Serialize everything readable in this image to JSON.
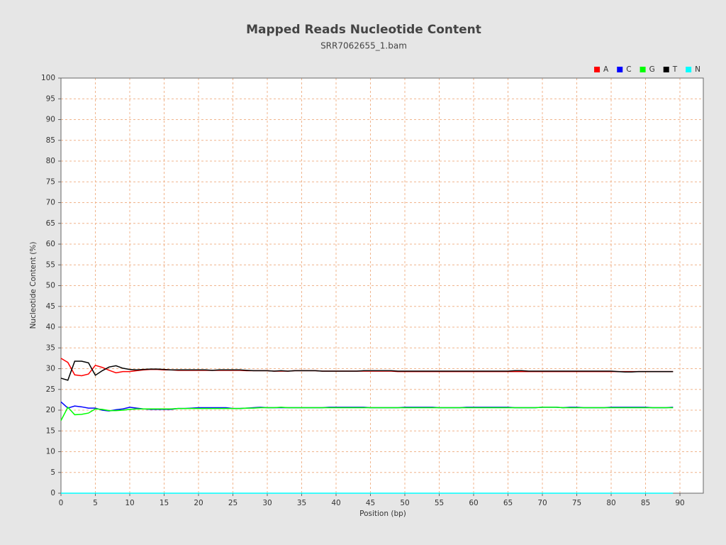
{
  "chart_data": {
    "type": "line",
    "title": "Mapped Reads Nucleotide Content",
    "subtitle": "SRR7062655_1.bam",
    "x_label": "Position (bp)",
    "y_label": "Nucleotide Content (%)",
    "x": [
      0,
      1,
      2,
      3,
      4,
      5,
      6,
      7,
      8,
      9,
      10,
      11,
      12,
      13,
      14,
      15,
      16,
      17,
      18,
      19,
      20,
      21,
      22,
      23,
      24,
      25,
      26,
      27,
      28,
      29,
      30,
      31,
      32,
      33,
      34,
      35,
      36,
      37,
      38,
      39,
      40,
      41,
      42,
      43,
      44,
      45,
      46,
      47,
      48,
      49,
      50,
      51,
      52,
      53,
      54,
      55,
      56,
      57,
      58,
      59,
      60,
      61,
      62,
      63,
      64,
      65,
      66,
      67,
      68,
      69,
      70,
      71,
      72,
      73,
      74,
      75,
      76,
      77,
      78,
      79,
      80,
      81,
      82,
      83,
      84,
      85,
      86,
      87,
      88,
      89
    ],
    "series": [
      {
        "name": "A",
        "color": "#ff0000",
        "values": [
          32.5,
          31.5,
          28.5,
          28.3,
          28.7,
          30.8,
          30.3,
          29.6,
          29.0,
          29.3,
          29.3,
          29.5,
          29.7,
          29.8,
          29.8,
          29.7,
          29.7,
          29.6,
          29.6,
          29.6,
          29.6,
          29.6,
          29.6,
          29.6,
          29.6,
          29.6,
          29.6,
          29.5,
          29.5,
          29.5,
          29.5,
          29.4,
          29.4,
          29.4,
          29.5,
          29.5,
          29.5,
          29.5,
          29.4,
          29.4,
          29.4,
          29.4,
          29.4,
          29.4,
          29.4,
          29.4,
          29.4,
          29.4,
          29.4,
          29.3,
          29.3,
          29.3,
          29.3,
          29.3,
          29.3,
          29.3,
          29.3,
          29.3,
          29.3,
          29.3,
          29.3,
          29.3,
          29.3,
          29.3,
          29.3,
          29.3,
          29.3,
          29.3,
          29.3,
          29.3,
          29.3,
          29.3,
          29.3,
          29.3,
          29.3,
          29.3,
          29.3,
          29.3,
          29.3,
          29.3,
          29.3,
          29.3,
          29.3,
          29.3,
          29.3,
          29.3,
          29.3,
          29.3,
          29.3,
          29.3
        ]
      },
      {
        "name": "C",
        "color": "#0000ff",
        "values": [
          22.0,
          20.5,
          21.0,
          20.8,
          20.5,
          20.5,
          20.0,
          19.8,
          20.1,
          20.3,
          20.7,
          20.5,
          20.3,
          20.2,
          20.2,
          20.2,
          20.2,
          20.4,
          20.4,
          20.5,
          20.6,
          20.6,
          20.6,
          20.6,
          20.6,
          20.4,
          20.4,
          20.5,
          20.6,
          20.7,
          20.6,
          20.6,
          20.6,
          20.6,
          20.6,
          20.6,
          20.6,
          20.6,
          20.6,
          20.7,
          20.7,
          20.7,
          20.7,
          20.7,
          20.7,
          20.6,
          20.6,
          20.6,
          20.6,
          20.6,
          20.7,
          20.7,
          20.7,
          20.7,
          20.7,
          20.6,
          20.6,
          20.6,
          20.6,
          20.7,
          20.7,
          20.7,
          20.7,
          20.7,
          20.7,
          20.7,
          20.6,
          20.6,
          20.6,
          20.6,
          20.7,
          20.7,
          20.7,
          20.6,
          20.7,
          20.7,
          20.6,
          20.6,
          20.6,
          20.6,
          20.7,
          20.7,
          20.7,
          20.7,
          20.7,
          20.7,
          20.6,
          20.6,
          20.6,
          20.7
        ]
      },
      {
        "name": "G",
        "color": "#00ff00",
        "values": [
          17.5,
          20.7,
          18.9,
          19.0,
          19.3,
          20.3,
          20.2,
          19.9,
          19.9,
          20.0,
          20.2,
          20.3,
          20.3,
          20.3,
          20.3,
          20.3,
          20.3,
          20.4,
          20.4,
          20.4,
          20.4,
          20.4,
          20.4,
          20.4,
          20.4,
          20.4,
          20.4,
          20.5,
          20.5,
          20.6,
          20.6,
          20.6,
          20.7,
          20.6,
          20.6,
          20.6,
          20.6,
          20.6,
          20.6,
          20.6,
          20.6,
          20.6,
          20.6,
          20.6,
          20.6,
          20.6,
          20.6,
          20.6,
          20.6,
          20.6,
          20.6,
          20.6,
          20.6,
          20.6,
          20.6,
          20.6,
          20.6,
          20.6,
          20.6,
          20.6,
          20.6,
          20.6,
          20.6,
          20.6,
          20.6,
          20.6,
          20.6,
          20.6,
          20.6,
          20.6,
          20.7,
          20.7,
          20.7,
          20.6,
          20.6,
          20.6,
          20.6,
          20.6,
          20.6,
          20.6,
          20.6,
          20.6,
          20.6,
          20.6,
          20.6,
          20.6,
          20.6,
          20.6,
          20.6,
          20.6
        ]
      },
      {
        "name": "T",
        "color": "#000000",
        "values": [
          27.7,
          27.2,
          31.8,
          31.8,
          31.4,
          28.4,
          29.5,
          30.4,
          30.7,
          30.1,
          29.8,
          29.7,
          29.8,
          29.9,
          29.9,
          29.8,
          29.7,
          29.7,
          29.7,
          29.7,
          29.7,
          29.7,
          29.6,
          29.7,
          29.7,
          29.7,
          29.7,
          29.6,
          29.5,
          29.5,
          29.5,
          29.4,
          29.5,
          29.4,
          29.5,
          29.5,
          29.5,
          29.5,
          29.4,
          29.4,
          29.4,
          29.4,
          29.4,
          29.4,
          29.5,
          29.5,
          29.5,
          29.5,
          29.5,
          29.4,
          29.4,
          29.4,
          29.4,
          29.4,
          29.4,
          29.4,
          29.4,
          29.4,
          29.4,
          29.4,
          29.4,
          29.4,
          29.4,
          29.4,
          29.4,
          29.4,
          29.5,
          29.5,
          29.4,
          29.4,
          29.4,
          29.4,
          29.4,
          29.4,
          29.4,
          29.4,
          29.4,
          29.4,
          29.4,
          29.4,
          29.4,
          29.3,
          29.2,
          29.2,
          29.3,
          29.3,
          29.3,
          29.3,
          29.3,
          29.3
        ]
      },
      {
        "name": "N",
        "color": "#00ffff",
        "values": [
          0,
          0,
          0,
          0,
          0,
          0,
          0,
          0,
          0,
          0,
          0,
          0,
          0,
          0,
          0,
          0,
          0,
          0,
          0,
          0,
          0,
          0,
          0,
          0,
          0,
          0,
          0,
          0,
          0,
          0,
          0,
          0,
          0,
          0,
          0,
          0,
          0,
          0,
          0,
          0,
          0,
          0,
          0,
          0,
          0,
          0,
          0,
          0,
          0,
          0,
          0,
          0,
          0,
          0,
          0,
          0,
          0,
          0,
          0,
          0,
          0,
          0,
          0,
          0,
          0,
          0,
          0,
          0,
          0,
          0,
          0,
          0,
          0,
          0,
          0,
          0,
          0,
          0,
          0,
          0,
          0,
          0,
          0,
          0,
          0,
          0,
          0,
          0,
          0,
          0
        ]
      }
    ],
    "xlim": [
      0,
      93.4
    ],
    "ylim": [
      0,
      100
    ],
    "xticks": [
      0,
      5,
      10,
      15,
      20,
      25,
      30,
      35,
      40,
      45,
      50,
      55,
      60,
      65,
      70,
      75,
      80,
      85,
      90
    ],
    "yticks": [
      0,
      5,
      10,
      15,
      20,
      25,
      30,
      35,
      40,
      45,
      50,
      55,
      60,
      65,
      70,
      75,
      80,
      85,
      90,
      95,
      100
    ],
    "grid": true,
    "legend": "top-right"
  }
}
